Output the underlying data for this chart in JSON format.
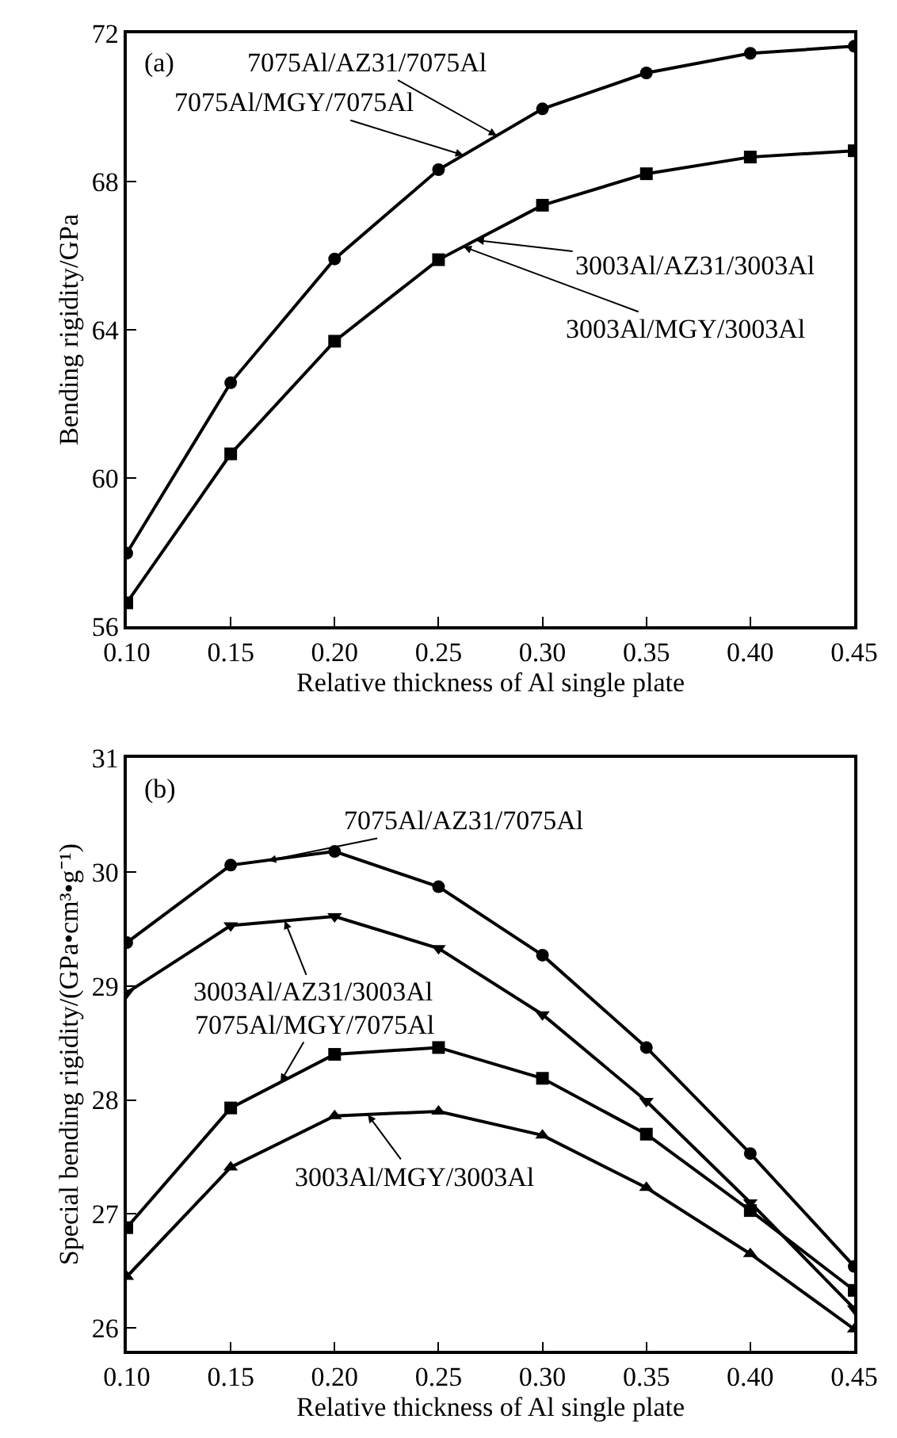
{
  "chart_data": [
    {
      "type": "line",
      "xlabel": "Relative thickness of Al single plate",
      "ylabel": "Bending rigidity/GPa",
      "x": [
        0.1,
        0.15,
        0.2,
        0.25,
        0.3,
        0.35,
        0.4,
        0.45
      ],
      "series": [
        {
          "color": "#000000",
          "marker": "circle",
          "values": [
            57.97,
            62.57,
            65.91,
            68.32,
            69.96,
            70.93,
            71.46,
            71.65
          ]
        },
        {
          "color": "#000000",
          "marker": "square",
          "values": [
            56.63,
            60.65,
            63.69,
            65.89,
            67.36,
            68.21,
            68.66,
            68.83
          ]
        }
      ],
      "xlim": [
        0.1,
        0.45
      ],
      "xticks": [
        {
          "value": 0.1,
          "label": "0.10"
        },
        {
          "value": 0.15,
          "label": "0.15"
        },
        {
          "value": 0.2,
          "label": "0.20"
        },
        {
          "value": 0.25,
          "label": "0.25"
        },
        {
          "value": 0.3,
          "label": "0.30"
        },
        {
          "value": 0.35,
          "label": "0.35"
        },
        {
          "value": 0.4,
          "label": "0.40"
        },
        {
          "value": 0.45,
          "label": "0.45"
        }
      ],
      "ylim": [
        56,
        72
      ],
      "yticks": [
        56,
        60,
        64,
        68,
        72
      ],
      "line_style": "solid",
      "annotations": [
        "(a)",
        {
          "text": "7075Al/AZ31/7075Al",
          "x": 0.278,
          "y": 69.24
        },
        {
          "text": "7075Al/MGY/7075Al",
          "x": 0.262,
          "y": 68.71
        },
        {
          "text": "3003Al/AZ31/3003Al",
          "x": 0.268,
          "y": 66.42
        },
        {
          "text": "3003Al/MGY/3003Al",
          "x": 0.262,
          "y": 66.24
        }
      ]
    },
    {
      "type": "line",
      "xlabel": "Relative thickness of Al single plate",
      "ylabel": "Special bending rigidity/(GPa•cm³•g⁻¹)",
      "x": [
        0.1,
        0.15,
        0.2,
        0.25,
        0.3,
        0.35,
        0.4,
        0.45
      ],
      "series": [
        {
          "color": "#000000",
          "marker": "circle",
          "values": [
            29.38,
            30.06,
            30.18,
            29.87,
            29.27,
            28.46,
            27.53,
            26.54
          ]
        },
        {
          "color": "#000000",
          "marker": "triangle-down",
          "values": [
            28.94,
            29.53,
            29.61,
            29.33,
            28.75,
            27.99,
            27.1,
            26.17
          ]
        },
        {
          "color": "#000000",
          "marker": "square",
          "values": [
            26.88,
            27.93,
            28.4,
            28.46,
            28.19,
            27.7,
            27.03,
            26.33
          ]
        },
        {
          "color": "#000000",
          "marker": "triangle",
          "values": [
            26.45,
            27.41,
            27.86,
            27.9,
            27.69,
            27.23,
            26.65,
            25.99
          ]
        }
      ],
      "xlim": [
        0.1,
        0.45
      ],
      "xticks": [
        {
          "value": 0.1,
          "label": "0.10"
        },
        {
          "value": 0.15,
          "label": "0.15"
        },
        {
          "value": 0.2,
          "label": "0.20"
        },
        {
          "value": 0.25,
          "label": "0.25"
        },
        {
          "value": 0.3,
          "label": "0.30"
        },
        {
          "value": 0.35,
          "label": "0.35"
        },
        {
          "value": 0.4,
          "label": "0.40"
        },
        {
          "value": 0.45,
          "label": "0.45"
        }
      ],
      "ylim": [
        25.8,
        31
      ],
      "yticks": [
        26,
        27,
        28,
        29,
        30,
        31
      ],
      "line_style": "solid",
      "annotations": [
        "(b)",
        {
          "text": "7075Al/AZ31/7075Al",
          "x": 0.168,
          "y": 30.1
        },
        {
          "text": "3003Al/AZ31/3003Al",
          "x": 0.176,
          "y": 29.57
        },
        {
          "text": "7075Al/MGY/7075Al",
          "x": 0.174,
          "y": 28.16
        },
        {
          "text": "3003Al/MGY/3003Al",
          "x": 0.216,
          "y": 27.87
        }
      ]
    }
  ]
}
